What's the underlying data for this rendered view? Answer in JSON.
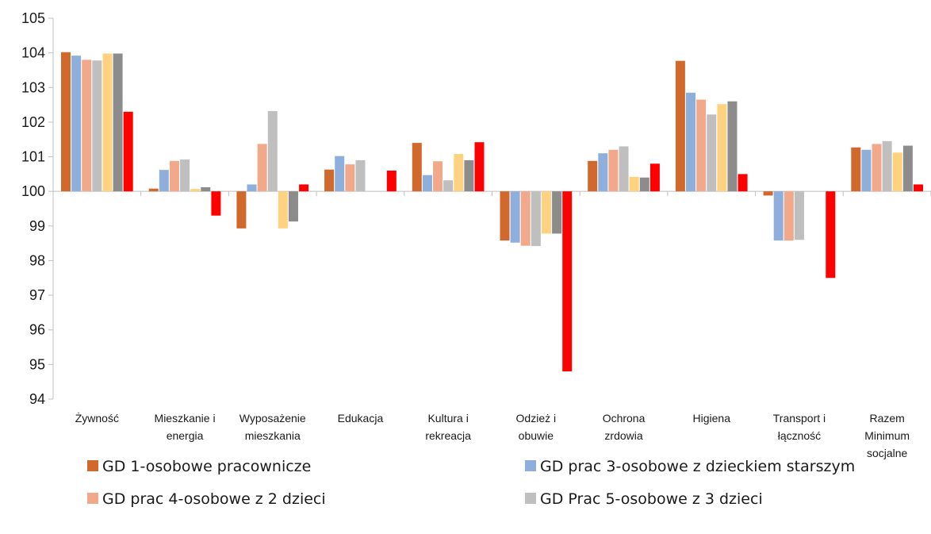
{
  "chart_data": {
    "type": "bar",
    "ylim": [
      94,
      105
    ],
    "yticks": [
      94,
      95,
      96,
      97,
      98,
      99,
      100,
      101,
      102,
      103,
      104,
      105
    ],
    "baseline": 100,
    "grid": false,
    "legend_position": "bottom",
    "categories": [
      [
        "Żywność"
      ],
      [
        "Mieszkanie i",
        "energia"
      ],
      [
        "Wyposażenie",
        "mieszkania"
      ],
      [
        "Edukacja"
      ],
      [
        "Kultura i",
        "rekreacja"
      ],
      [
        "Odzież i",
        "obuwie"
      ],
      [
        "Ochrona",
        "zrdowia"
      ],
      [
        "Higiena"
      ],
      [
        "Transport i",
        "łączność"
      ],
      [
        "Razem",
        "Minimum",
        "socjalne"
      ]
    ],
    "series": [
      {
        "name": "GD 1-osobowe pracownicze",
        "color": "#D0692B",
        "values": [
          104.02,
          100.08,
          98.93,
          100.63,
          101.4,
          98.58,
          100.88,
          103.77,
          99.88,
          101.27
        ]
      },
      {
        "name": "GD prac 3-osobowe z dzieckiem starszym",
        "color": "#8EAEDC",
        "values": [
          103.92,
          100.62,
          100.2,
          101.02,
          100.47,
          98.52,
          101.1,
          102.85,
          98.58,
          101.2
        ]
      },
      {
        "name": "GD prac 4-osobowe z 2 dzieci",
        "color": "#F2A98B",
        "values": [
          103.8,
          100.88,
          101.37,
          100.78,
          100.87,
          98.43,
          101.2,
          102.65,
          98.58,
          101.37
        ]
      },
      {
        "name": "GD Prac 5-osobowe z 3 dzieci",
        "color": "#BFBFBF",
        "values": [
          103.78,
          100.92,
          102.32,
          100.9,
          100.32,
          98.42,
          101.3,
          102.22,
          98.6,
          101.45
        ]
      },
      {
        "name": "",
        "color": "#FFD27F",
        "values": [
          103.98,
          100.07,
          98.93,
          100.0,
          101.08,
          98.78,
          100.42,
          102.52,
          100.0,
          101.12
        ]
      },
      {
        "name": "",
        "color": "#8C8C8C",
        "values": [
          103.98,
          100.12,
          99.13,
          100.0,
          100.9,
          98.78,
          100.4,
          102.6,
          100.0,
          101.32
        ]
      },
      {
        "name": "",
        "color": "#FF0000",
        "values": [
          102.3,
          99.3,
          100.2,
          100.6,
          101.42,
          94.8,
          100.8,
          100.5,
          97.5,
          100.2
        ]
      }
    ]
  }
}
